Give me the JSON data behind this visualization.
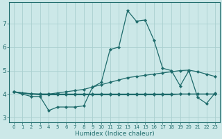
{
  "xlabel": "Humidex (Indice chaleur)",
  "bg_color": "#cce8e8",
  "grid_color": "#aad0d0",
  "line_color": "#1e6b6b",
  "xlim": [
    -0.5,
    23.5
  ],
  "ylim": [
    2.8,
    7.9
  ],
  "xticks": [
    0,
    1,
    2,
    3,
    4,
    5,
    6,
    7,
    8,
    9,
    10,
    11,
    12,
    13,
    14,
    15,
    16,
    17,
    18,
    19,
    20,
    21,
    22,
    23
  ],
  "yticks": [
    3,
    4,
    5,
    6,
    7
  ],
  "series": [
    [
      4.1,
      4.0,
      3.9,
      3.9,
      3.3,
      3.45,
      3.45,
      3.45,
      3.5,
      4.3,
      4.5,
      5.9,
      6.0,
      7.55,
      7.1,
      7.15,
      6.3,
      5.1,
      5.0,
      4.35,
      5.0,
      3.85,
      3.6,
      4.05
    ],
    [
      4.1,
      4.05,
      4.0,
      4.0,
      4.0,
      4.05,
      4.1,
      4.15,
      4.2,
      4.3,
      4.4,
      4.5,
      4.6,
      4.7,
      4.75,
      4.8,
      4.85,
      4.9,
      4.95,
      5.0,
      5.02,
      4.95,
      4.85,
      4.75
    ],
    [
      4.1,
      4.05,
      4.0,
      3.97,
      3.97,
      3.97,
      3.97,
      3.97,
      3.97,
      3.97,
      3.97,
      3.97,
      3.97,
      3.97,
      3.97,
      3.97,
      3.97,
      3.97,
      3.97,
      4.0,
      4.0,
      4.0,
      4.0,
      4.0
    ],
    [
      4.1,
      4.05,
      4.02,
      4.0,
      4.0,
      4.0,
      4.0,
      4.0,
      4.0,
      4.0,
      4.0,
      4.0,
      4.0,
      4.0,
      4.0,
      4.0,
      4.0,
      4.0,
      4.0,
      4.0,
      4.0,
      4.0,
      4.0,
      4.0
    ]
  ]
}
